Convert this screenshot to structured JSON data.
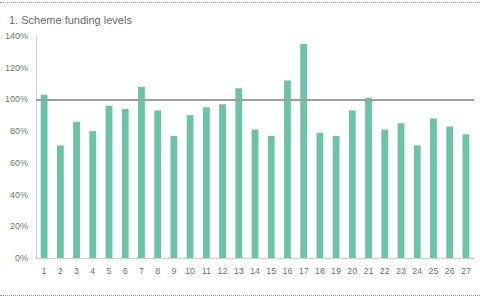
{
  "chart_data": {
    "type": "bar",
    "title": "1. Scheme funding levels",
    "categories": [
      "1",
      "2",
      "3",
      "4",
      "5",
      "6",
      "7",
      "8",
      "9",
      "10",
      "11",
      "12",
      "13",
      "14",
      "15",
      "16",
      "17",
      "18",
      "19",
      "20",
      "21",
      "22",
      "23",
      "24",
      "25",
      "26",
      "27"
    ],
    "values": [
      103,
      71,
      86,
      80,
      96,
      94,
      108,
      93,
      77,
      90,
      95,
      97,
      107,
      81,
      77,
      112,
      135,
      79,
      77,
      93,
      101,
      81,
      85,
      71,
      88,
      83,
      78
    ],
    "color": "#6cc3a7",
    "ylim": [
      0,
      140
    ],
    "yticks": [
      {
        "value": 0,
        "label": "0%"
      },
      {
        "value": 20,
        "label": "20%"
      },
      {
        "value": 40,
        "label": "40%"
      },
      {
        "value": 60,
        "label": "60%"
      },
      {
        "value": 80,
        "label": "80%"
      },
      {
        "value": 100,
        "label": "100%"
      },
      {
        "value": 120,
        "label": "120%"
      },
      {
        "value": 140,
        "label": "140%"
      }
    ],
    "reference_line": 100,
    "grid": false
  }
}
